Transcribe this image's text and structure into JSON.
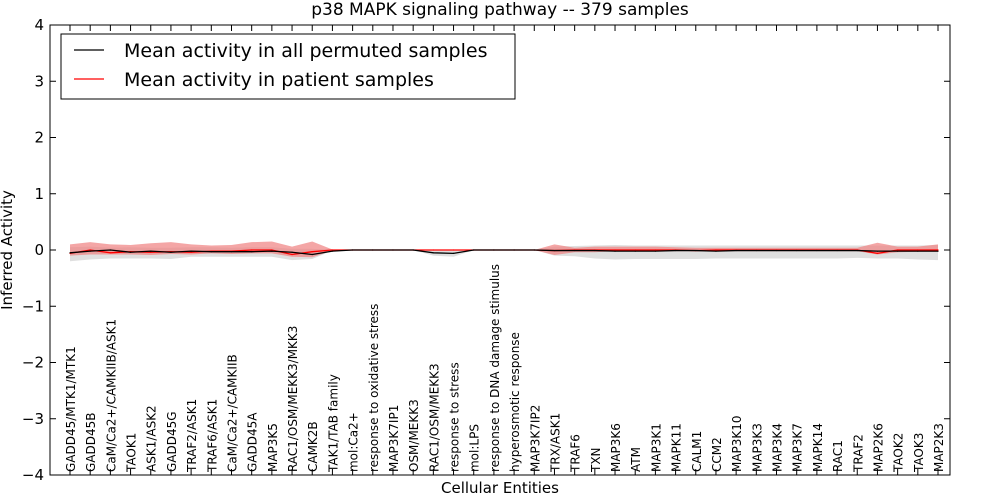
{
  "chart_data": {
    "type": "line",
    "title": "p38 MAPK signaling pathway -- 379 samples",
    "xlabel": "Cellular Entities",
    "ylabel": "Inferred Activity",
    "ylim": [
      -4,
      4
    ],
    "yticks": [
      -4,
      -3,
      -2,
      -1,
      0,
      1,
      2,
      3,
      4
    ],
    "ytick_labels": [
      "−4",
      "−3",
      "−2",
      "−1",
      "0",
      "1",
      "2",
      "3",
      "4"
    ],
    "grid": false,
    "legend_position": "top-left",
    "categories": [
      "GADD45/MTK1/MTK1",
      "GADD45B",
      "CaM/Ca2+/CAMKIIB/ASK1",
      "TAOK1",
      "ASK1/ASK2",
      "GADD45G",
      "TRAF2/ASK1",
      "TRAF6/ASK1",
      "CaM/Ca2+/CAMKIIB",
      "GADD45A",
      "MAP3K5",
      "RAC1/OSM/MEKK3/MKK3",
      "CAMK2B",
      "TAK1/TAB family",
      "mol:Ca2+",
      "response to oxidative stress",
      "MAP3K7IP1",
      "OSM/MEKK3",
      "RAC1/OSM/MEKK3",
      "response to stress",
      "mol:LPS",
      "response to DNA damage stimulus",
      "hyperosmotic response",
      "MAP3K7IP2",
      "TRX/ASK1",
      "TRAF6",
      "TXN",
      "MAP3K6",
      "ATM",
      "MAP3K1",
      "MAPK11",
      "CALM1",
      "CCM2",
      "MAP3K10",
      "MAP3K3",
      "MAP3K4",
      "MAP3K7",
      "MAPK14",
      "RAC1",
      "TRAF2",
      "MAP2K6",
      "TAOK2",
      "TAOK3",
      "MAP2K3"
    ],
    "series": [
      {
        "name": "Mean activity in all permuted samples",
        "color": "#000000",
        "band_color": "#d9d9d9",
        "values": [
          -0.05,
          -0.02,
          0.0,
          -0.04,
          -0.02,
          -0.04,
          -0.02,
          -0.03,
          -0.03,
          -0.03,
          -0.02,
          -0.04,
          -0.08,
          -0.02,
          0.0,
          0.0,
          0.0,
          0.0,
          -0.05,
          -0.06,
          0.0,
          0.0,
          0.0,
          0.0,
          -0.01,
          -0.01,
          -0.01,
          -0.02,
          -0.02,
          -0.02,
          -0.01,
          -0.01,
          -0.02,
          -0.01,
          -0.01,
          -0.01,
          -0.01,
          -0.01,
          -0.01,
          -0.01,
          -0.02,
          -0.02,
          -0.02,
          -0.02
        ],
        "lower": [
          -0.2,
          -0.17,
          -0.15,
          -0.15,
          -0.15,
          -0.16,
          -0.12,
          -0.12,
          -0.12,
          -0.12,
          -0.12,
          -0.18,
          -0.16,
          -0.01,
          0.0,
          0.0,
          0.0,
          0.0,
          -0.1,
          -0.12,
          0.0,
          0.0,
          0.0,
          0.0,
          -0.1,
          -0.11,
          -0.15,
          -0.17,
          -0.16,
          -0.16,
          -0.16,
          -0.16,
          -0.15,
          -0.15,
          -0.15,
          -0.15,
          -0.15,
          -0.15,
          -0.15,
          -0.14,
          -0.15,
          -0.15,
          -0.17,
          -0.18
        ],
        "upper": [
          0.05,
          0.06,
          0.04,
          0.05,
          0.04,
          0.04,
          0.05,
          0.05,
          0.04,
          0.05,
          0.05,
          0.02,
          0.02,
          0.01,
          0.0,
          0.0,
          0.0,
          0.0,
          0.01,
          0.01,
          0.0,
          0.0,
          0.0,
          0.0,
          0.06,
          0.07,
          0.08,
          0.09,
          0.08,
          0.08,
          0.08,
          0.08,
          0.08,
          0.08,
          0.08,
          0.08,
          0.08,
          0.08,
          0.08,
          0.08,
          0.08,
          0.08,
          0.08,
          0.09
        ]
      },
      {
        "name": "Mean activity in patient samples",
        "color": "#ff0000",
        "band_color": "#f08080",
        "values": [
          -0.06,
          0.0,
          -0.05,
          -0.03,
          -0.04,
          -0.03,
          -0.04,
          -0.02,
          -0.02,
          0.0,
          0.0,
          -0.08,
          -0.03,
          0.0,
          0.0,
          0.0,
          0.0,
          0.0,
          0.0,
          0.0,
          0.0,
          0.0,
          0.0,
          0.0,
          -0.01,
          0.0,
          0.0,
          0.0,
          0.0,
          0.0,
          0.0,
          -0.01,
          0.0,
          0.0,
          0.0,
          0.0,
          0.0,
          0.0,
          0.0,
          0.0,
          -0.06,
          0.0,
          0.0,
          0.0
        ],
        "lower": [
          -0.1,
          -0.08,
          -0.08,
          -0.08,
          -0.09,
          -0.07,
          -0.08,
          -0.06,
          -0.07,
          -0.06,
          -0.06,
          -0.12,
          -0.13,
          -0.01,
          0.0,
          0.0,
          0.0,
          0.0,
          -0.01,
          -0.01,
          0.0,
          0.0,
          0.0,
          0.0,
          -0.09,
          -0.04,
          -0.04,
          -0.02,
          -0.02,
          -0.02,
          -0.02,
          -0.02,
          -0.02,
          -0.02,
          -0.02,
          -0.02,
          -0.02,
          -0.02,
          -0.02,
          -0.02,
          -0.08,
          -0.04,
          -0.03,
          -0.03
        ],
        "upper": [
          0.1,
          0.14,
          0.1,
          0.09,
          0.12,
          0.14,
          0.1,
          0.08,
          0.09,
          0.14,
          0.15,
          0.06,
          0.15,
          0.01,
          0.0,
          0.0,
          0.0,
          0.0,
          0.01,
          0.01,
          0.0,
          0.0,
          0.0,
          0.0,
          0.1,
          0.04,
          0.06,
          0.06,
          0.06,
          0.06,
          0.05,
          0.04,
          0.04,
          0.04,
          0.04,
          0.04,
          0.04,
          0.04,
          0.04,
          0.04,
          0.13,
          0.06,
          0.06,
          0.1
        ]
      }
    ]
  }
}
